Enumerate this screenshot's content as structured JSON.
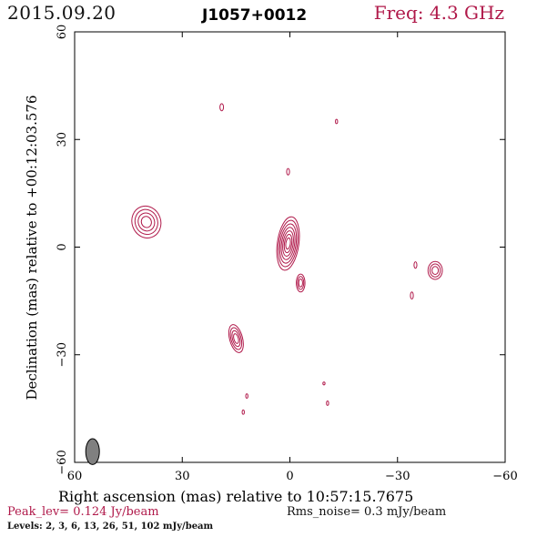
{
  "header": {
    "date": "2015.09.20",
    "source": "J1057+0012",
    "frequency": "Freq: 4.3 GHz"
  },
  "footer": {
    "peak": "Peak_lev=  0.124 Jy/beam",
    "rms": "Rms_noise=  0.3 mJy/beam",
    "levels": "Levels:   2,   3,   6,   13,   26,   51,  102  mJy/beam"
  },
  "colors": {
    "contour": "#b0194a",
    "axis": "#000000",
    "beam": "#808080"
  },
  "chart_data": {
    "type": "contour",
    "xlabel": "Right ascension (mas) relative to 10:57:15.7675",
    "ylabel": "Declination (mas) relative to +00:12:03.576",
    "xlim": [
      60,
      -60
    ],
    "ylim": [
      -60,
      60
    ],
    "xticks": [
      60,
      30,
      0,
      -30,
      -60
    ],
    "yticks": [
      -60,
      -30,
      0,
      30,
      60
    ],
    "xtick_labels": [
      "60",
      "30",
      "0",
      "−30",
      "−60"
    ],
    "ytick_labels": [
      "−60",
      "−30",
      "0",
      "30",
      "60"
    ],
    "contour_levels_mJy_per_beam": [
      2,
      3,
      6,
      13,
      26,
      51,
      102
    ],
    "beam": {
      "x": 55,
      "y": -57,
      "major_mas": 3.6,
      "minor_mas": 1.9,
      "pa_deg": 0
    },
    "components": [
      {
        "x": 0.5,
        "y": 1.0,
        "rx": 3.0,
        "ry": 7.5,
        "rot": 8,
        "levels": 7
      },
      {
        "x": -3.0,
        "y": -10.0,
        "rx": 1.2,
        "ry": 2.5,
        "rot": 0,
        "levels": 3
      },
      {
        "x": 40.0,
        "y": 7.0,
        "rx": 4.0,
        "ry": 4.5,
        "rot": -20,
        "levels": 4
      },
      {
        "x": 15.0,
        "y": -25.5,
        "rx": 1.8,
        "ry": 4.0,
        "rot": -15,
        "levels": 4
      },
      {
        "x": -40.5,
        "y": -6.5,
        "rx": 2.0,
        "ry": 2.5,
        "rot": 0,
        "levels": 3
      },
      {
        "x": 19.0,
        "y": 39.0,
        "rx": 0.5,
        "ry": 1.0,
        "rot": 0,
        "levels": 1
      },
      {
        "x": -13.0,
        "y": 35.0,
        "rx": 0.3,
        "ry": 0.6,
        "rot": 0,
        "levels": 1
      },
      {
        "x": 0.5,
        "y": 21.0,
        "rx": 0.4,
        "ry": 0.9,
        "rot": 0,
        "levels": 1
      },
      {
        "x": -35.0,
        "y": -5.0,
        "rx": 0.4,
        "ry": 0.9,
        "rot": 0,
        "levels": 1
      },
      {
        "x": -34.0,
        "y": -13.5,
        "rx": 0.4,
        "ry": 1.0,
        "rot": 0,
        "levels": 1
      },
      {
        "x": 12.0,
        "y": -41.5,
        "rx": 0.3,
        "ry": 0.6,
        "rot": 0,
        "levels": 1
      },
      {
        "x": 13.0,
        "y": -46.0,
        "rx": 0.3,
        "ry": 0.6,
        "rot": 0,
        "levels": 1
      },
      {
        "x": -9.5,
        "y": -38.0,
        "rx": 0.3,
        "ry": 0.4,
        "rot": 0,
        "levels": 1
      },
      {
        "x": -10.5,
        "y": -43.5,
        "rx": 0.3,
        "ry": 0.6,
        "rot": 0,
        "levels": 1
      }
    ]
  }
}
